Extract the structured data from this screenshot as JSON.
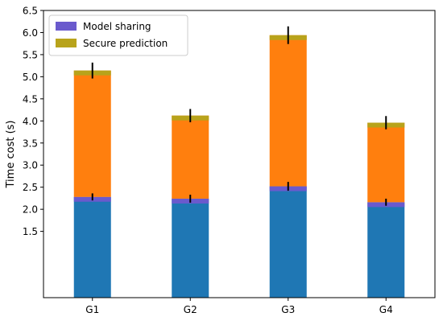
{
  "chart_data": {
    "type": "bar",
    "stacked": true,
    "categories": [
      "G1",
      "G2",
      "G3",
      "G4"
    ],
    "ylabel": "Time cost (s)",
    "xlabel": "",
    "ylim": [
      0.0,
      6.5
    ],
    "yticks": [
      1.5,
      2.0,
      2.5,
      3.0,
      3.5,
      4.0,
      4.5,
      5.0,
      5.5,
      6.0,
      6.5
    ],
    "ytick_labels": [
      "1.5",
      "2.0",
      "2.5",
      "3.0",
      "3.5",
      "4.0",
      "4.5",
      "5.0",
      "5.5",
      "6.0",
      "6.5"
    ],
    "grid": false,
    "legend_position": "top-left",
    "legend": [
      {
        "label": "Model sharing",
        "color": "#6a5acd"
      },
      {
        "label": "Secure prediction",
        "color": "#b8a31b"
      }
    ],
    "series": [
      {
        "name": "Model sharing",
        "color": "#1f77b4",
        "band_color": "#6a5acd",
        "values": [
          2.28,
          2.24,
          2.52,
          2.16
        ],
        "errors": [
          0.08,
          0.09,
          0.1,
          0.08
        ]
      },
      {
        "name": "Secure prediction",
        "color": "#ff7f0e",
        "band_color": "#b8a31b",
        "values": [
          2.86,
          1.88,
          3.42,
          1.8
        ],
        "errors": [
          0.18,
          0.15,
          0.2,
          0.15
        ]
      }
    ]
  }
}
